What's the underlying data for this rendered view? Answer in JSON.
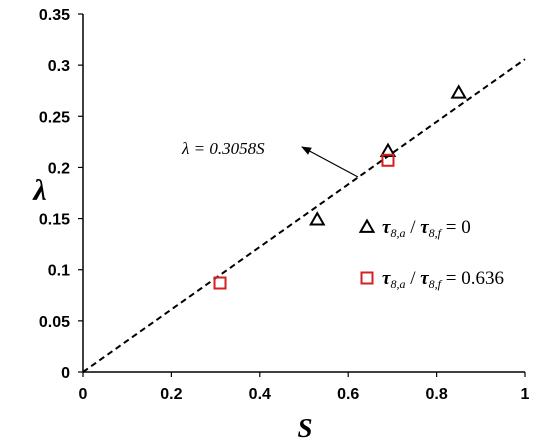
{
  "chart_data": {
    "type": "scatter",
    "xlabel": "S",
    "ylabel": "λ",
    "xlim": [
      0,
      1
    ],
    "ylim": [
      0,
      0.35
    ],
    "x_ticks": [
      "0",
      "0.2",
      "0.4",
      "0.6",
      "0.8",
      "1"
    ],
    "y_ticks": [
      "0",
      "0.05",
      "0.1",
      "0.15",
      "0.2",
      "0.25",
      "0.3",
      "0.35"
    ],
    "grid": false,
    "legend_position": "right",
    "series": [
      {
        "marker": "triangle",
        "color": "#000000",
        "legend": {
          "num_sym": "τ",
          "num_sub": "8,a",
          "den_sym": "τ",
          "den_sub": "8,f",
          "rhs": "= 0"
        },
        "points": [
          [
            0.53,
            0.149
          ],
          [
            0.69,
            0.216
          ],
          [
            0.85,
            0.273
          ]
        ]
      },
      {
        "marker": "square",
        "color": "#d61f1f",
        "legend": {
          "num_sym": "τ",
          "num_sub": "8,a",
          "den_sym": "τ",
          "den_sub": "8,f",
          "rhs": "= 0.636"
        },
        "points": [
          [
            0.31,
            0.087
          ],
          [
            0.69,
            0.207
          ]
        ]
      }
    ],
    "fit_line": {
      "slope": 0.3058,
      "x_range": [
        0,
        1
      ],
      "style": "dashed",
      "color": "#000000",
      "label": "λ = 0.3058S"
    }
  }
}
